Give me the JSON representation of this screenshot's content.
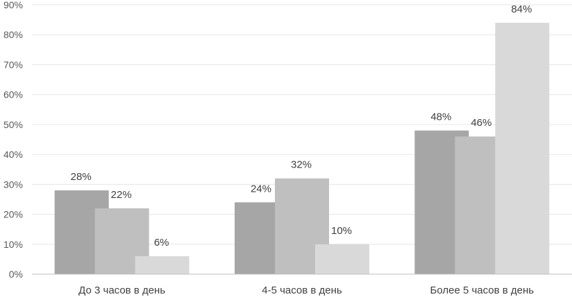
{
  "chart_data": {
    "type": "bar",
    "title": "",
    "xlabel": "",
    "ylabel": "",
    "ylim": [
      0,
      90
    ],
    "y_ticks": [
      "0%",
      "10%",
      "20%",
      "30%",
      "40%",
      "50%",
      "60%",
      "70%",
      "80%",
      "90%"
    ],
    "y_tick_values": [
      0,
      10,
      20,
      30,
      40,
      50,
      60,
      70,
      80,
      90
    ],
    "grid": true,
    "legend": "none",
    "categories": [
      "До 3 часов в день",
      "4-5 часов в день",
      "Более 5 часов в день"
    ],
    "series": [
      {
        "values": [
          28,
          24,
          48
        ],
        "labels": [
          "28%",
          "24%",
          "48%"
        ],
        "color": "#a6a6a6"
      },
      {
        "values": [
          22,
          32,
          46
        ],
        "labels": [
          "22%",
          "32%",
          "46%"
        ],
        "color": "#bfbfbf"
      },
      {
        "values": [
          6,
          10,
          84
        ],
        "labels": [
          "6%",
          "10%",
          "84%"
        ],
        "color": "#d9d9d9"
      }
    ]
  }
}
